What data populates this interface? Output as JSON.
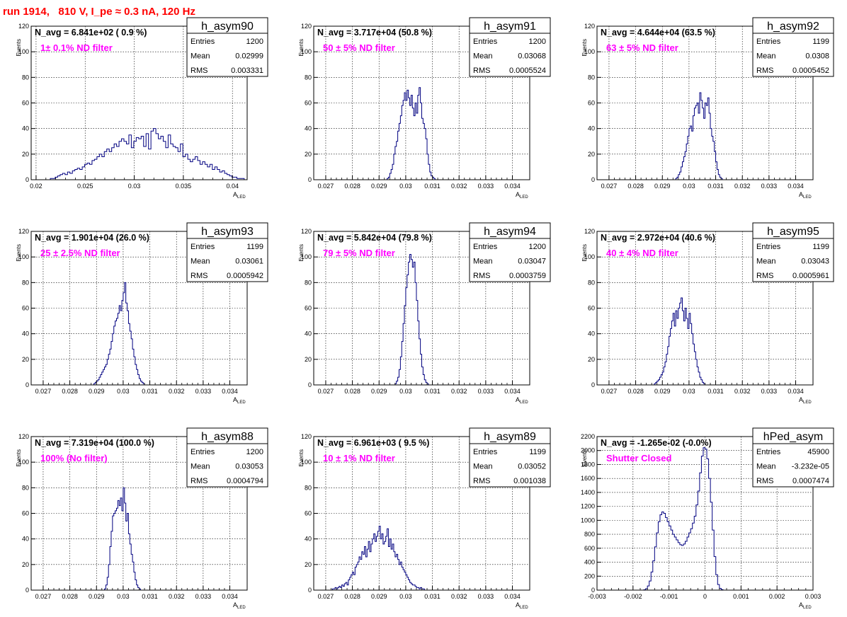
{
  "page_title": "run 1914,   810 V, I_pe ≈ 0.3 nA, 120 Hz",
  "colors": {
    "title": "#ff0000",
    "histogram": "#000080",
    "annotation": "#ff00ff",
    "grid": "#000000",
    "frame": "#000000"
  },
  "chart_data": [
    {
      "type": "bar",
      "name": "h_asym90",
      "xlabel": "A",
      "xlabel_sub": "LED",
      "ylabel": "Events",
      "xlim": [
        0.0195,
        0.0415
      ],
      "ylim": [
        0,
        120
      ],
      "xticks": [
        "0.02",
        "0.025",
        "0.03",
        "0.035",
        "0.04"
      ],
      "yticks": [
        "0",
        "20",
        "40",
        "60",
        "80",
        "100",
        "120"
      ],
      "navg": "N_avg = 6.841e+02 ( 0.9 %)",
      "filter_label": "1± 0.1% ND filter",
      "stats": {
        "Entries": "1200",
        "Mean": "0.02999",
        "RMS": "0.003331"
      },
      "grid": true,
      "bins": {
        "x0": 0.0212,
        "width": 0.00025,
        "values": [
          0,
          1,
          1,
          2,
          3,
          4,
          5,
          4,
          6,
          5,
          7,
          8,
          9,
          8,
          10,
          12,
          13,
          12,
          15,
          16,
          18,
          20,
          18,
          22,
          24,
          22,
          25,
          28,
          26,
          30,
          32,
          30,
          28,
          35,
          25,
          30,
          33,
          32,
          34,
          26,
          36,
          24,
          38,
          40,
          36,
          32,
          34,
          30,
          25,
          35,
          28,
          26,
          25,
          22,
          28,
          18,
          20,
          16,
          14,
          16,
          18,
          15,
          12,
          14,
          12,
          10,
          12,
          8,
          10,
          8,
          6,
          7,
          5,
          4,
          3,
          2,
          2,
          1,
          1,
          1,
          0
        ]
      }
    },
    {
      "type": "bar",
      "name": "h_asym91",
      "xlabel": "A",
      "xlabel_sub": "LED",
      "ylabel": "Events",
      "xlim": [
        0.02655,
        0.03465
      ],
      "ylim": [
        0,
        120
      ],
      "xticks": [
        "0.027",
        "0.028",
        "0.029",
        "0.03",
        "0.031",
        "0.032",
        "0.033",
        "0.034"
      ],
      "yticks": [
        "0",
        "20",
        "40",
        "60",
        "80",
        "100",
        "120"
      ],
      "navg": "N_avg = 3.717e+04 (50.8 %)",
      "filter_label": "50 ± 5% ND filter",
      "stats": {
        "Entries": "1200",
        "Mean": "0.03068",
        "RMS": "0.0005524"
      },
      "grid": true,
      "bins": {
        "x0": 0.0293,
        "width": 5e-05,
        "values": [
          1,
          2,
          5,
          8,
          12,
          20,
          26,
          30,
          38,
          44,
          50,
          58,
          62,
          68,
          62,
          70,
          64,
          58,
          66,
          56,
          50,
          60,
          52,
          66,
          72,
          60,
          48,
          44,
          40,
          32,
          20,
          12,
          6,
          3,
          2,
          1
        ]
      }
    },
    {
      "type": "bar",
      "name": "h_asym92",
      "xlabel": "A",
      "xlabel_sub": "LED",
      "ylabel": "Events",
      "xlim": [
        0.02655,
        0.03465
      ],
      "ylim": [
        0,
        120
      ],
      "xticks": [
        "0.027",
        "0.028",
        "0.029",
        "0.03",
        "0.031",
        "0.032",
        "0.033",
        "0.034"
      ],
      "yticks": [
        "0",
        "20",
        "40",
        "60",
        "80",
        "100",
        "120"
      ],
      "navg": "N_avg = 4.644e+04 (63.5 %)",
      "filter_label": "63 ± 5% ND filter",
      "stats": {
        "Entries": "1199",
        "Mean": "0.0308",
        "RMS": "0.0005452"
      },
      "grid": true,
      "bins": {
        "x0": 0.0295,
        "width": 5e-05,
        "values": [
          1,
          2,
          4,
          6,
          10,
          14,
          18,
          22,
          28,
          34,
          40,
          42,
          38,
          50,
          56,
          58,
          60,
          52,
          68,
          62,
          56,
          48,
          60,
          58,
          64,
          52,
          40,
          34,
          30,
          22,
          14,
          8,
          4,
          2,
          1
        ]
      }
    },
    {
      "type": "bar",
      "name": "h_asym93",
      "xlabel": "A",
      "xlabel_sub": "LED",
      "ylabel": "Events",
      "xlim": [
        0.02655,
        0.03465
      ],
      "ylim": [
        0,
        120
      ],
      "xticks": [
        "0.027",
        "0.028",
        "0.029",
        "0.03",
        "0.031",
        "0.032",
        "0.033",
        "0.034"
      ],
      "yticks": [
        "0",
        "20",
        "40",
        "60",
        "80",
        "100",
        "120"
      ],
      "navg": "N_avg = 1.901e+04 (26.0 %)",
      "filter_label": "25 ± 2.5% ND filter",
      "stats": {
        "Entries": "1199",
        "Mean": "0.03061",
        "RMS": "0.0005942"
      },
      "grid": true,
      "bins": {
        "x0": 0.0289,
        "width": 5e-05,
        "values": [
          1,
          2,
          3,
          4,
          6,
          8,
          10,
          12,
          14,
          16,
          20,
          24,
          28,
          34,
          40,
          46,
          50,
          52,
          56,
          62,
          58,
          66,
          72,
          80,
          64,
          58,
          48,
          42,
          36,
          28,
          22,
          16,
          12,
          8,
          5,
          3,
          2,
          1
        ]
      }
    },
    {
      "type": "bar",
      "name": "h_asym94",
      "xlabel": "A",
      "xlabel_sub": "LED",
      "ylabel": "Events",
      "xlim": [
        0.02655,
        0.03465
      ],
      "ylim": [
        0,
        120
      ],
      "xticks": [
        "0.027",
        "0.028",
        "0.029",
        "0.03",
        "0.031",
        "0.032",
        "0.033",
        "0.034"
      ],
      "yticks": [
        "0",
        "20",
        "40",
        "60",
        "80",
        "100",
        "120"
      ],
      "navg": "N_avg = 5.842e+04 (79.8 %)",
      "filter_label": "79 ± 5% ND filter",
      "stats": {
        "Entries": "1200",
        "Mean": "0.03047",
        "RMS": "0.0003759"
      },
      "grid": true,
      "bins": {
        "x0": 0.0296,
        "width": 5e-05,
        "values": [
          1,
          3,
          6,
          12,
          22,
          34,
          48,
          62,
          76,
          86,
          96,
          102,
          98,
          92,
          96,
          80,
          66,
          50,
          36,
          24,
          14,
          8,
          4,
          2,
          1
        ]
      }
    },
    {
      "type": "bar",
      "name": "h_asym95",
      "xlabel": "A",
      "xlabel_sub": "LED",
      "ylabel": "Events",
      "xlim": [
        0.02655,
        0.03465
      ],
      "ylim": [
        0,
        120
      ],
      "xticks": [
        "0.027",
        "0.028",
        "0.029",
        "0.03",
        "0.031",
        "0.032",
        "0.033",
        "0.034"
      ],
      "yticks": [
        "0",
        "20",
        "40",
        "60",
        "80",
        "100",
        "120"
      ],
      "navg": "N_avg = 2.972e+04 (40.6 %)",
      "filter_label": "40 ± 4% ND filter",
      "stats": {
        "Entries": "1199",
        "Mean": "0.03043",
        "RMS": "0.0005961"
      },
      "grid": true,
      "bins": {
        "x0": 0.0287,
        "width": 5e-05,
        "values": [
          1,
          2,
          3,
          4,
          6,
          8,
          10,
          14,
          18,
          24,
          30,
          38,
          44,
          50,
          56,
          46,
          58,
          52,
          60,
          64,
          68,
          58,
          50,
          60,
          52,
          44,
          56,
          48,
          40,
          32,
          26,
          20,
          14,
          10,
          6,
          4,
          2,
          1
        ]
      }
    },
    {
      "type": "bar",
      "name": "h_asym88",
      "xlabel": "A",
      "xlabel_sub": "LED",
      "ylabel": "Events",
      "xlim": [
        0.02655,
        0.03465
      ],
      "ylim": [
        0,
        120
      ],
      "xticks": [
        "0.027",
        "0.028",
        "0.029",
        "0.03",
        "0.031",
        "0.032",
        "0.033",
        "0.034"
      ],
      "yticks": [
        "0",
        "20",
        "40",
        "60",
        "80",
        "100",
        "120"
      ],
      "navg": "N_avg = 7.319e+04 (100.0 %)",
      "filter_label": "100% (No filter)",
      "stats": {
        "Entries": "1200",
        "Mean": "0.03053",
        "RMS": "0.0004794"
      },
      "grid": true,
      "bins": {
        "x0": 0.0293,
        "width": 5e-05,
        "values": [
          1,
          4,
          10,
          20,
          34,
          46,
          58,
          60,
          62,
          64,
          70,
          66,
          72,
          62,
          80,
          68,
          54,
          60,
          44,
          36,
          28,
          22,
          14,
          8,
          4,
          2,
          1
        ]
      }
    },
    {
      "type": "bar",
      "name": "h_asym89",
      "xlabel": "A",
      "xlabel_sub": "LED",
      "ylabel": "Events",
      "xlim": [
        0.02655,
        0.03465
      ],
      "ylim": [
        0,
        120
      ],
      "xticks": [
        "0.027",
        "0.028",
        "0.029",
        "0.03",
        "0.031",
        "0.032",
        "0.033",
        "0.034"
      ],
      "yticks": [
        "0",
        "20",
        "40",
        "60",
        "80",
        "100",
        "120"
      ],
      "navg": "N_avg = 6.961e+03 ( 9.5 %)",
      "filter_label": "10 ± 1% ND filter",
      "stats": {
        "Entries": "1199",
        "Mean": "0.03052",
        "RMS": "0.001038"
      },
      "grid": true,
      "bins": {
        "x0": 0.0272,
        "width": 5e-05,
        "values": [
          0,
          1,
          1,
          2,
          1,
          2,
          3,
          2,
          4,
          3,
          5,
          6,
          4,
          8,
          10,
          12,
          14,
          12,
          18,
          20,
          22,
          26,
          24,
          30,
          28,
          34,
          26,
          32,
          38,
          30,
          36,
          40,
          44,
          38,
          42,
          46,
          50,
          40,
          44,
          36,
          38,
          42,
          48,
          34,
          40,
          32,
          36,
          30,
          26,
          28,
          24,
          20,
          22,
          18,
          16,
          14,
          12,
          10,
          8,
          6,
          5,
          4,
          4,
          3,
          2,
          2,
          1,
          2,
          1,
          1,
          0
        ]
      }
    },
    {
      "type": "bar",
      "name": "hPed_asym",
      "xlabel": "A",
      "xlabel_sub": "LED",
      "ylabel": "Events",
      "xlim": [
        -0.003,
        0.003
      ],
      "ylim": [
        0,
        2200
      ],
      "xticks": [
        "-0.003",
        "-0.002",
        "-0.001",
        "0",
        "0.001",
        "0.002",
        "0.003"
      ],
      "yticks": [
        "0",
        "200",
        "400",
        "600",
        "800",
        "1000",
        "1200",
        "1400",
        "1600",
        "1800",
        "2000",
        "2200"
      ],
      "navg": "N_avg = -1.265e-02 (-0.0%)",
      "filter_label": "Shutter Closed",
      "stats": {
        "Entries": "45900",
        "Mean": "-3.232e-05",
        "RMS": "0.0007474"
      },
      "grid": true,
      "bins": {
        "x0": -0.0017,
        "width": 5e-05,
        "values": [
          5,
          20,
          60,
          130,
          260,
          420,
          620,
          820,
          980,
          1080,
          1120,
          1100,
          1040,
          980,
          920,
          860,
          800,
          760,
          720,
          680,
          650,
          640,
          660,
          700,
          760,
          820,
          880,
          960,
          1060,
          1220,
          1420,
          1680,
          1920,
          2040,
          2020,
          1880,
          1600,
          1260,
          860,
          480,
          220,
          80,
          25,
          8
        ]
      }
    }
  ]
}
